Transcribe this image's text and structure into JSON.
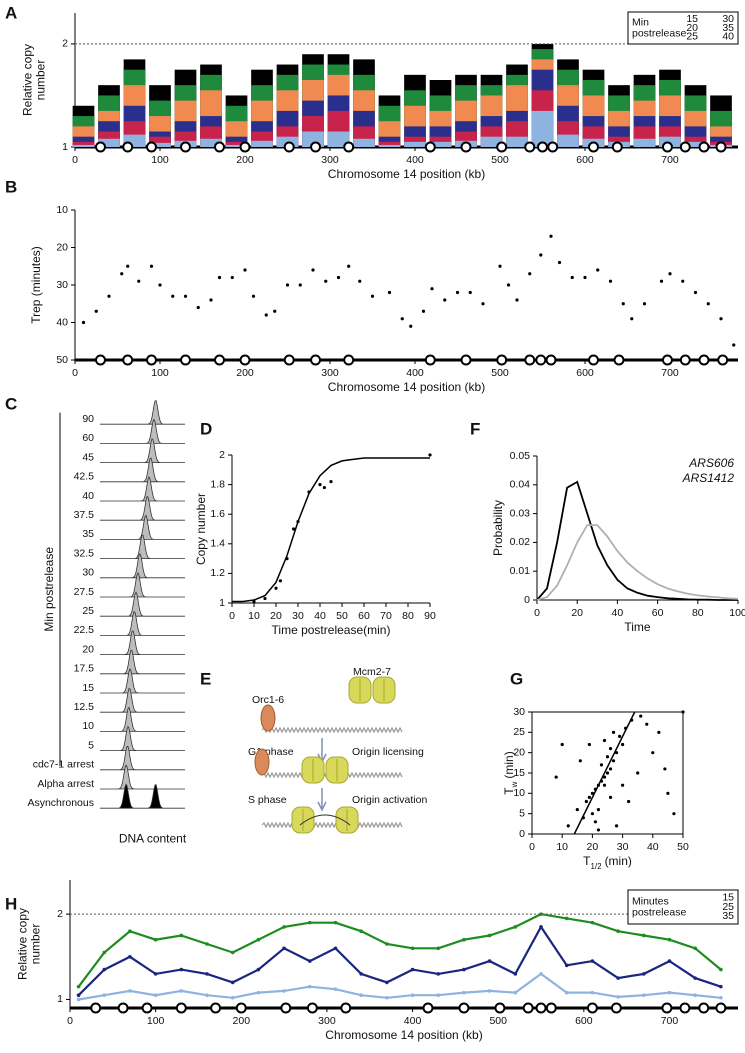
{
  "chart_data": [
    {
      "type": "bar",
      "panel": "A",
      "ylabel": [
        "Relative copy",
        "number"
      ],
      "xlabel": "Chromosome 14 position (kb)",
      "xlim": [
        0,
        780
      ],
      "ylim": [
        1,
        2.3
      ],
      "xticks": [
        0,
        100,
        200,
        300,
        400,
        500,
        600,
        700
      ],
      "yticks": [
        1,
        2
      ],
      "hline": 2,
      "legend_title": [
        "Min",
        "postrelease"
      ],
      "x": [
        10,
        40,
        70,
        100,
        130,
        160,
        190,
        220,
        250,
        280,
        310,
        340,
        370,
        400,
        430,
        460,
        490,
        520,
        550,
        580,
        610,
        640,
        670,
        700,
        730,
        760
      ],
      "origins": [
        30,
        62,
        90,
        130,
        170,
        200,
        252,
        283,
        322,
        418,
        460,
        502,
        535,
        550,
        562,
        610,
        638,
        697,
        718,
        740,
        760
      ],
      "series": [
        {
          "name": "15",
          "color": "#8fb3e0",
          "values": [
            1.02,
            1.08,
            1.12,
            1.04,
            1.06,
            1.08,
            1.02,
            1.06,
            1.1,
            1.15,
            1.15,
            1.08,
            1.02,
            1.05,
            1.05,
            1.06,
            1.1,
            1.1,
            1.35,
            1.12,
            1.08,
            1.05,
            1.08,
            1.1,
            1.05,
            1.02
          ]
        },
        {
          "name": "20",
          "color": "#c8234a",
          "values": [
            1.05,
            1.15,
            1.25,
            1.1,
            1.15,
            1.2,
            1.05,
            1.15,
            1.2,
            1.3,
            1.35,
            1.2,
            1.05,
            1.1,
            1.1,
            1.15,
            1.2,
            1.25,
            1.55,
            1.25,
            1.2,
            1.1,
            1.2,
            1.2,
            1.1,
            1.05
          ]
        },
        {
          "name": "25",
          "color": "#2a2e8c",
          "values": [
            1.1,
            1.25,
            1.4,
            1.15,
            1.25,
            1.3,
            1.1,
            1.25,
            1.35,
            1.45,
            1.5,
            1.35,
            1.1,
            1.2,
            1.2,
            1.25,
            1.3,
            1.35,
            1.75,
            1.4,
            1.3,
            1.2,
            1.3,
            1.3,
            1.2,
            1.1
          ]
        },
        {
          "name": "30",
          "color": "#f08a50",
          "values": [
            1.2,
            1.35,
            1.6,
            1.3,
            1.45,
            1.55,
            1.25,
            1.45,
            1.55,
            1.65,
            1.7,
            1.55,
            1.25,
            1.4,
            1.35,
            1.45,
            1.5,
            1.6,
            1.85,
            1.6,
            1.5,
            1.35,
            1.45,
            1.5,
            1.35,
            1.2
          ]
        },
        {
          "name": "35",
          "color": "#1f8a3c",
          "values": [
            1.3,
            1.5,
            1.75,
            1.45,
            1.6,
            1.7,
            1.4,
            1.6,
            1.7,
            1.8,
            1.8,
            1.7,
            1.4,
            1.55,
            1.5,
            1.6,
            1.6,
            1.7,
            1.95,
            1.75,
            1.65,
            1.5,
            1.6,
            1.65,
            1.5,
            1.35
          ]
        },
        {
          "name": "40",
          "color": "#000000",
          "values": [
            1.4,
            1.6,
            1.85,
            1.6,
            1.75,
            1.8,
            1.5,
            1.75,
            1.8,
            1.9,
            1.9,
            1.85,
            1.5,
            1.7,
            1.65,
            1.7,
            1.7,
            1.8,
            2.0,
            1.85,
            1.75,
            1.6,
            1.7,
            1.75,
            1.6,
            1.5
          ]
        }
      ]
    },
    {
      "type": "scatter",
      "panel": "B",
      "ylabel": "Trep (minutes)",
      "xlabel": "Chromosome 14 position (kb)",
      "xlim": [
        0,
        780
      ],
      "ylim": [
        10,
        50
      ],
      "y_inverted": true,
      "xticks": [
        0,
        100,
        200,
        300,
        400,
        500,
        600,
        700
      ],
      "yticks": [
        10,
        20,
        30,
        40,
        50
      ],
      "origins": [
        30,
        62,
        90,
        130,
        170,
        200,
        252,
        283,
        322,
        418,
        460,
        502,
        535,
        548,
        560,
        610,
        640,
        697,
        718,
        740,
        762
      ],
      "color": "#000000",
      "x": [
        10,
        25,
        40,
        55,
        62,
        75,
        90,
        100,
        115,
        130,
        145,
        160,
        170,
        185,
        200,
        210,
        225,
        235,
        250,
        265,
        280,
        295,
        310,
        322,
        335,
        350,
        370,
        385,
        395,
        410,
        420,
        435,
        450,
        465,
        480,
        500,
        510,
        520,
        535,
        548,
        560,
        570,
        585,
        600,
        615,
        630,
        645,
        655,
        670,
        690,
        700,
        715,
        730,
        745,
        760,
        775
      ],
      "values": [
        40,
        37,
        33,
        27,
        25,
        29,
        25,
        30,
        33,
        33,
        36,
        34,
        28,
        28,
        26,
        33,
        38,
        37,
        30,
        30,
        26,
        29,
        28,
        25,
        29,
        33,
        32,
        39,
        41,
        37,
        31,
        34,
        32,
        32,
        35,
        25,
        30,
        34,
        27,
        22,
        17,
        24,
        28,
        28,
        26,
        29,
        35,
        39,
        35,
        29,
        27,
        29,
        32,
        35,
        39,
        46
      ]
    },
    {
      "type": "ridgeline",
      "panel": "C",
      "ylabel": "Min postrelease",
      "xlabel": "DNA content",
      "xlim": [
        0.2,
        2.8
      ],
      "rows": [
        {
          "label": "90",
          "peaks": [
            1.9
          ]
        },
        {
          "label": "60",
          "peaks": [
            1.85
          ]
        },
        {
          "label": "45",
          "peaks": [
            1.8
          ]
        },
        {
          "label": "42.5",
          "peaks": [
            1.75
          ]
        },
        {
          "label": "40",
          "peaks": [
            1.7
          ]
        },
        {
          "label": "37.5",
          "peaks": [
            1.65
          ]
        },
        {
          "label": "35",
          "peaks": [
            1.6
          ]
        },
        {
          "label": "32.5",
          "peaks": [
            1.5
          ]
        },
        {
          "label": "30",
          "peaks": [
            1.42
          ]
        },
        {
          "label": "27.5",
          "peaks": [
            1.36
          ]
        },
        {
          "label": "25",
          "peaks": [
            1.3
          ]
        },
        {
          "label": "22.5",
          "peaks": [
            1.25
          ]
        },
        {
          "label": "20",
          "peaks": [
            1.2
          ]
        },
        {
          "label": "17.5",
          "peaks": [
            1.16
          ]
        },
        {
          "label": "15",
          "peaks": [
            1.12
          ]
        },
        {
          "label": "12.5",
          "peaks": [
            1.1
          ]
        },
        {
          "label": "10",
          "peaks": [
            1.08
          ]
        },
        {
          "label": "5",
          "peaks": [
            1.06
          ]
        },
        {
          "label": "cdc7-1 arrest",
          "peaks": [
            1.04
          ]
        },
        {
          "label": "Alpha arrest",
          "peaks": [
            1.0
          ]
        },
        {
          "label": "Asynchronous",
          "peaks": [
            1.0,
            1.9
          ]
        }
      ]
    },
    {
      "type": "scatter",
      "panel": "D",
      "ylabel": "Copy number",
      "xlabel": "Time postrelease(min)",
      "xlim": [
        0,
        90
      ],
      "ylim": [
        1,
        2
      ],
      "xticks": [
        0,
        10,
        20,
        30,
        40,
        50,
        60,
        70,
        80,
        90
      ],
      "yticks": [
        1,
        1.2,
        1.4,
        1.6,
        1.8,
        2
      ],
      "color": "#000000",
      "x": [
        10,
        15,
        20,
        22,
        25,
        28,
        30,
        35,
        40,
        42,
        45,
        90
      ],
      "values": [
        1.01,
        1.03,
        1.1,
        1.15,
        1.3,
        1.5,
        1.55,
        1.75,
        1.8,
        1.78,
        1.82,
        2
      ],
      "fit": {
        "x": [
          0,
          5,
          10,
          15,
          20,
          25,
          30,
          35,
          40,
          45,
          50,
          55,
          60,
          65,
          70,
          75,
          80,
          85,
          90
        ],
        "y": [
          1.01,
          1.01,
          1.02,
          1.05,
          1.14,
          1.32,
          1.55,
          1.74,
          1.86,
          1.93,
          1.96,
          1.97,
          1.98,
          1.98,
          1.98,
          1.98,
          1.98,
          1.98,
          1.98
        ]
      }
    },
    {
      "type": "line",
      "panel": "F",
      "ylabel": "Probability",
      "xlabel": "Time",
      "xlim": [
        0,
        100
      ],
      "ylim": [
        0,
        0.05
      ],
      "xticks": [
        0,
        20,
        40,
        60,
        80,
        100
      ],
      "yticks": [
        0,
        0.01,
        0.02,
        0.03,
        0.04,
        0.05
      ],
      "legend": "upper right",
      "x": [
        0,
        5,
        10,
        15,
        20,
        25,
        30,
        35,
        40,
        45,
        50,
        55,
        60,
        65,
        70,
        75,
        80,
        85,
        90,
        95,
        100
      ],
      "series": [
        {
          "name": "ARS606",
          "color": "#000000",
          "values": [
            0,
            0.004,
            0.02,
            0.039,
            0.041,
            0.03,
            0.019,
            0.012,
            0.007,
            0.004,
            0.0025,
            0.0015,
            0.001,
            0.0006,
            0.0004,
            0.0002,
            0.0001,
            0.0001,
            0,
            0,
            0
          ]
        },
        {
          "name": "ARS1412",
          "color": "#b0b0b0",
          "values": [
            0,
            0.001,
            0.005,
            0.012,
            0.02,
            0.026,
            0.026,
            0.022,
            0.017,
            0.013,
            0.01,
            0.0075,
            0.0055,
            0.004,
            0.003,
            0.0022,
            0.0016,
            0.0012,
            0.0009,
            0.0006,
            0.0004
          ]
        }
      ]
    },
    {
      "type": "scatter",
      "panel": "G",
      "frame": "box",
      "ylabel": {
        "text": "T",
        "sub": "w",
        "unit": "(min)"
      },
      "xlabel": {
        "text": "T",
        "sub": "1/2",
        "unit": "(min)"
      },
      "xlim": [
        0,
        50
      ],
      "ylim": [
        0,
        30
      ],
      "xticks": [
        0,
        10,
        20,
        30,
        40,
        50
      ],
      "yticks": [
        0,
        5,
        10,
        15,
        20,
        25,
        30
      ],
      "color": "#000000",
      "x": [
        20,
        22,
        25,
        18,
        21,
        24,
        27,
        19,
        23,
        26,
        28,
        22,
        25,
        30,
        20,
        17,
        24,
        29,
        26,
        23,
        31,
        33,
        21,
        27,
        35,
        40,
        45,
        12,
        8,
        15,
        38,
        42,
        30,
        28,
        16,
        19,
        24,
        32,
        47,
        36,
        44,
        10,
        50,
        26,
        22
      ],
      "values": [
        10,
        12,
        15,
        8,
        11,
        14,
        18,
        9,
        13,
        16,
        20,
        6,
        19,
        22,
        5,
        4,
        12,
        24,
        21,
        17,
        26,
        28,
        3,
        25,
        15,
        20,
        10,
        2,
        14,
        6,
        27,
        25,
        12,
        2,
        18,
        22,
        23,
        8,
        5,
        29,
        16,
        22,
        30,
        9,
        1
      ],
      "fit": {
        "x": [
          14,
          34
        ],
        "y": [
          0,
          30
        ]
      }
    },
    {
      "type": "line",
      "panel": "H",
      "ylabel": [
        "Relative copy",
        "number"
      ],
      "xlabel": "Chromosome 14 position (kb)",
      "xlim": [
        0,
        780
      ],
      "ylim": [
        0.9,
        2.4
      ],
      "xticks": [
        0,
        100,
        200,
        300,
        400,
        500,
        600,
        700
      ],
      "yticks": [
        1,
        2
      ],
      "hline": 2,
      "legend_title": [
        "Minutes",
        "postrelease"
      ],
      "x": [
        10,
        40,
        70,
        100,
        130,
        160,
        190,
        220,
        250,
        280,
        310,
        340,
        370,
        400,
        430,
        460,
        490,
        520,
        550,
        580,
        610,
        640,
        670,
        700,
        730,
        760
      ],
      "origins": [
        30,
        62,
        90,
        130,
        170,
        200,
        252,
        283,
        322,
        418,
        460,
        502,
        535,
        550,
        562,
        610,
        638,
        697,
        718,
        740,
        760
      ],
      "series": [
        {
          "name": "15",
          "color": "#8fb3e0",
          "values": [
            1.0,
            1.05,
            1.1,
            1.05,
            1.1,
            1.05,
            1.02,
            1.08,
            1.1,
            1.15,
            1.12,
            1.05,
            1.02,
            1.05,
            1.05,
            1.08,
            1.1,
            1.08,
            1.3,
            1.08,
            1.08,
            1.03,
            1.05,
            1.08,
            1.05,
            1.02
          ]
        },
        {
          "name": "25",
          "color": "#1a2580",
          "values": [
            1.05,
            1.35,
            1.5,
            1.3,
            1.35,
            1.3,
            1.2,
            1.35,
            1.6,
            1.45,
            1.6,
            1.3,
            1.2,
            1.35,
            1.3,
            1.35,
            1.45,
            1.3,
            1.85,
            1.4,
            1.45,
            1.25,
            1.3,
            1.45,
            1.25,
            1.15
          ]
        },
        {
          "name": "35",
          "color": "#1e8c1e",
          "values": [
            1.15,
            1.55,
            1.8,
            1.7,
            1.75,
            1.65,
            1.55,
            1.7,
            1.85,
            1.9,
            1.9,
            1.8,
            1.65,
            1.6,
            1.6,
            1.7,
            1.75,
            1.85,
            2.0,
            1.95,
            1.9,
            1.8,
            1.75,
            1.7,
            1.6,
            1.35
          ]
        }
      ]
    }
  ],
  "diagram": {
    "panel": "E",
    "labels": {
      "mcm": "Mcm2-7",
      "orc": "Orc1-6",
      "g1": "G1 phase",
      "licensing": "Origin licensing",
      "s": "S phase",
      "activation": "Origin activation"
    }
  }
}
